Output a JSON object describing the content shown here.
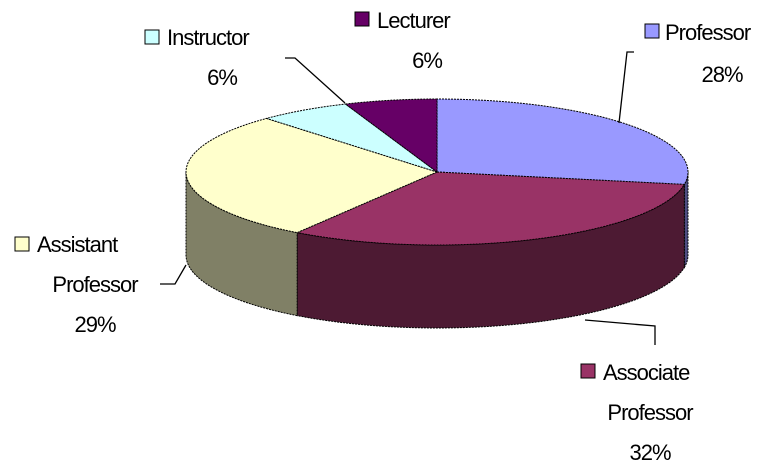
{
  "chart_data": {
    "type": "pie3d",
    "categories": [
      "Professor",
      "Associate Professor",
      "Assistant Professor",
      "Instructor",
      "Lecturer"
    ],
    "values": [
      28,
      32,
      29,
      6,
      6
    ],
    "value_labels": [
      "28%",
      "32%",
      "29%",
      "6%",
      "6%"
    ],
    "colors": [
      "#9999ff",
      "#993366",
      "#ffffcc",
      "#ccffff",
      "#660066"
    ]
  }
}
